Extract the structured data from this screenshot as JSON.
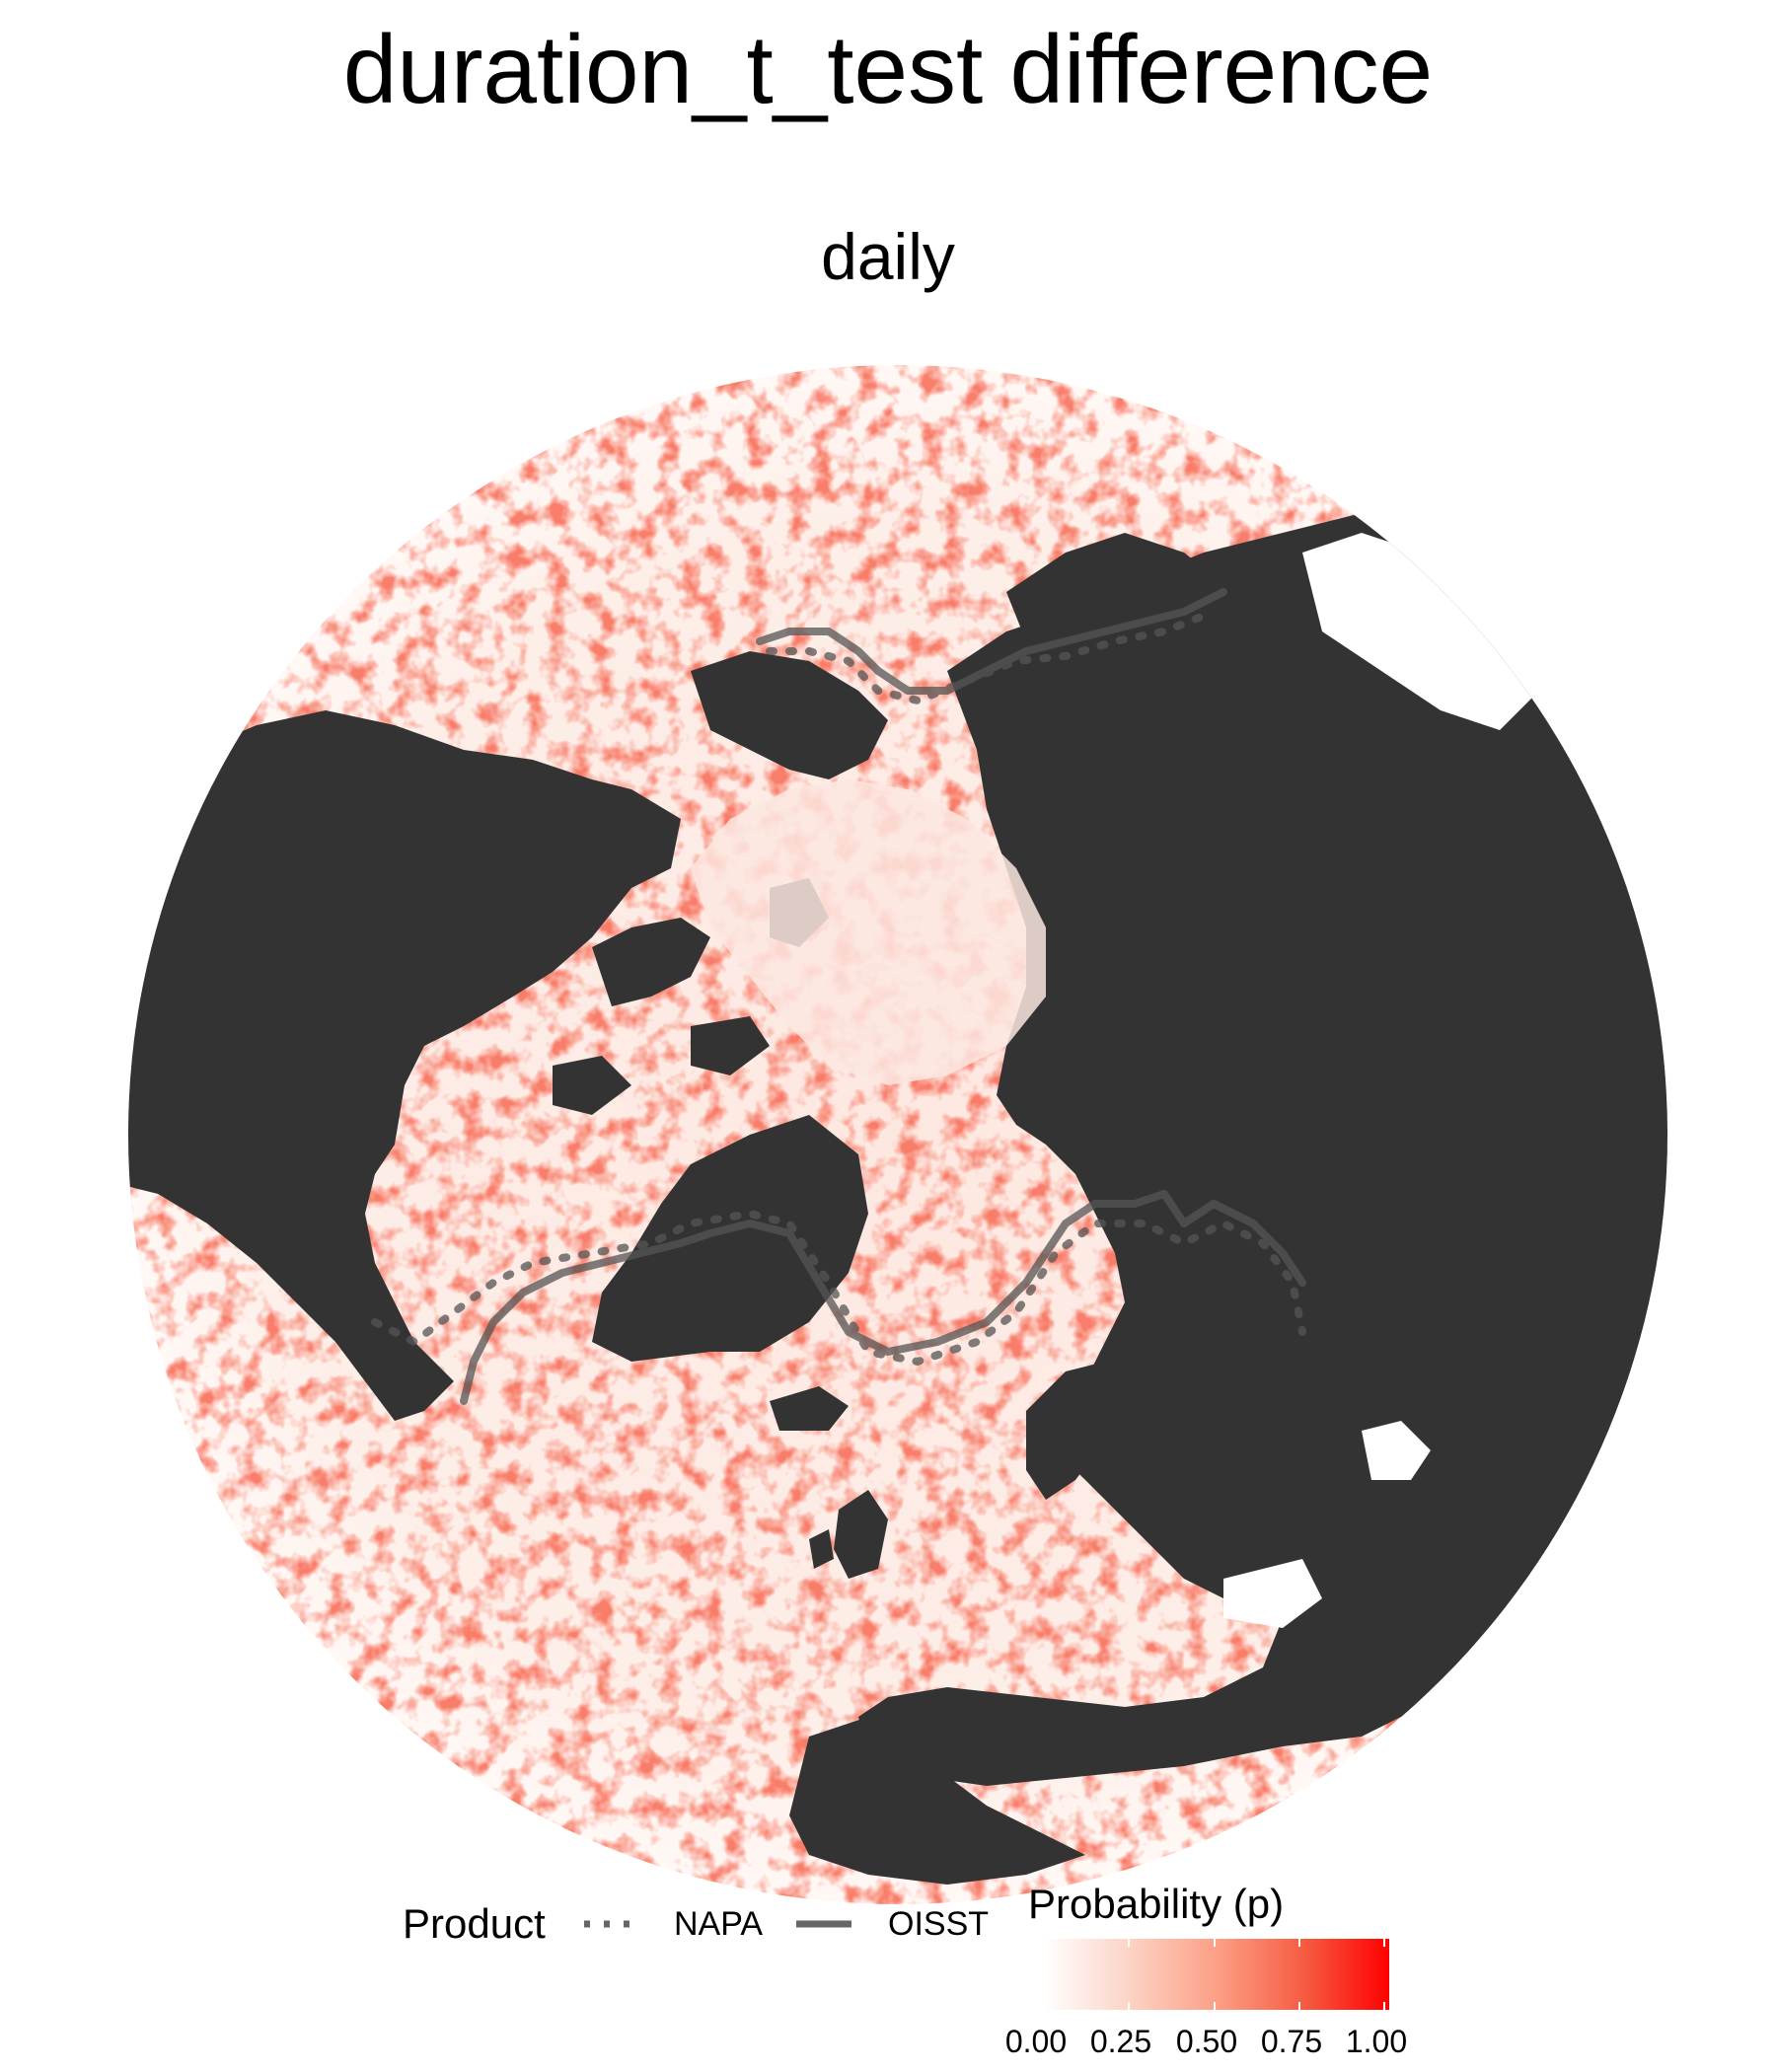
{
  "title": "duration_t_test difference",
  "subtitle": "daily",
  "legend": {
    "product_title": "Product",
    "products": [
      {
        "name": "NAPA",
        "line_style": "dotted",
        "color": "#666666"
      },
      {
        "name": "OISST",
        "line_style": "solid",
        "color": "#666666"
      }
    ],
    "colorbar_title": "Probability (p)",
    "colorbar_ticks": [
      "0.00",
      "0.25",
      "0.50",
      "0.75",
      "1.00"
    ],
    "colorbar_colors": [
      "#ffffff",
      "#ff0000"
    ]
  },
  "colors": {
    "land": "#333333",
    "ocean_low": "#fff5f0",
    "ocean_high": "#ef2b1b",
    "contour": "#555555"
  }
}
